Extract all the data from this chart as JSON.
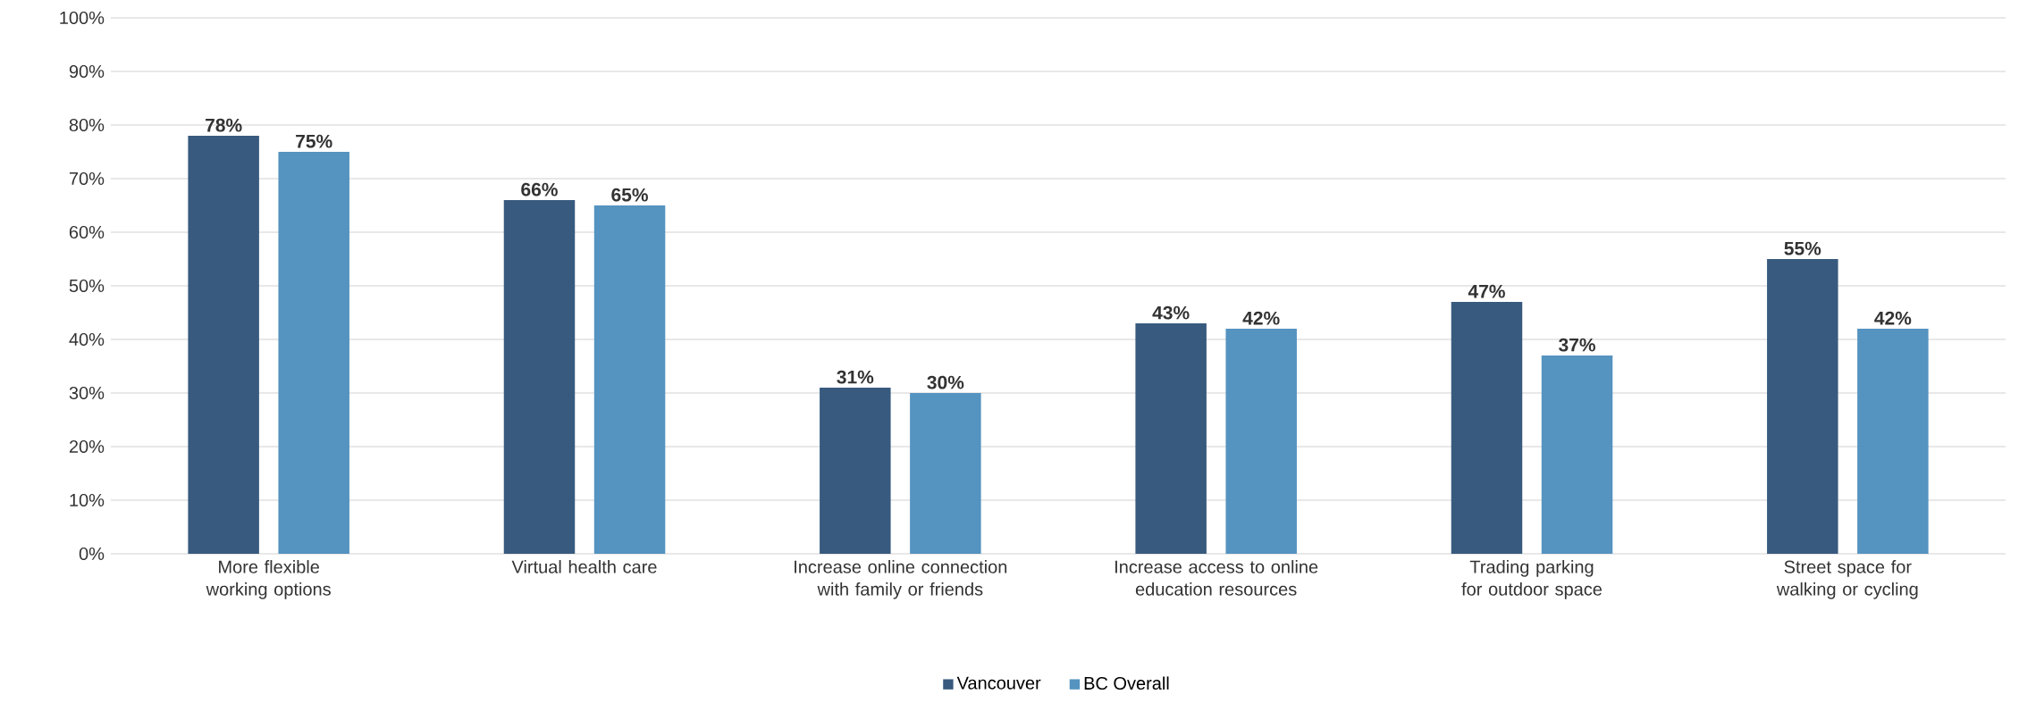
{
  "chart_data": {
    "type": "bar",
    "categories": [
      "More flexible working options",
      "Virtual health care",
      "Increase online connection with family or friends",
      "Increase access to online education resources",
      "Trading parking for outdoor space",
      "Street space for walking or cycling"
    ],
    "series": [
      {
        "name": "Vancouver",
        "color": "#385a7e",
        "values": [
          78,
          66,
          31,
          43,
          47,
          55
        ],
        "value_labels": [
          "78%",
          "66%",
          "31%",
          "43%",
          "47%",
          "55%"
        ]
      },
      {
        "name": "BC Overall",
        "color": "#5593c0",
        "values": [
          75,
          65,
          30,
          42,
          37,
          42
        ],
        "value_labels": [
          "75%",
          "65%",
          "30%",
          "42%",
          "37%",
          "42%"
        ]
      }
    ],
    "ylim": [
      0,
      100
    ],
    "yticks": [
      {
        "value": 0,
        "label": "0%"
      },
      {
        "value": 10,
        "label": "10%"
      },
      {
        "value": 20,
        "label": "20%"
      },
      {
        "value": 30,
        "label": "30%"
      },
      {
        "value": 40,
        "label": "40%"
      },
      {
        "value": 50,
        "label": "50%"
      },
      {
        "value": 60,
        "label": "60%"
      },
      {
        "value": 70,
        "label": "70%"
      },
      {
        "value": 80,
        "label": "80%"
      },
      {
        "value": 90,
        "label": "90%"
      },
      {
        "value": 100,
        "label": "100%"
      }
    ],
    "grid": "y",
    "legend": "bottom"
  }
}
